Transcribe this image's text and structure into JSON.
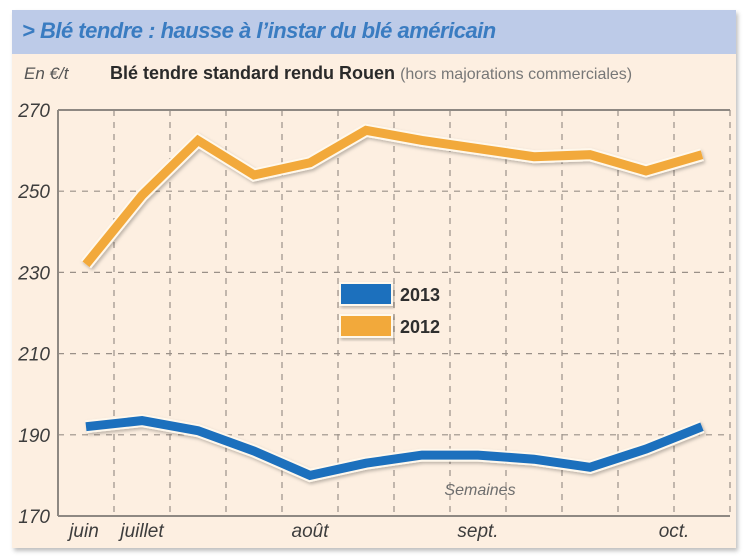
{
  "header": {
    "title": "> Blé tendre : hausse à l’instar du blé américain"
  },
  "subtitle": {
    "unit": "En €/t",
    "main": "Blé tendre standard rendu Rouen",
    "note": "(hors majorations commerciales)"
  },
  "colors": {
    "header_bg": "#bdcbe8",
    "header_text": "#3a7cc1",
    "panel_bg": "#fdefe1",
    "series_2013": "#1f6fbd",
    "series_2012": "#f2a93b"
  },
  "chart_data": {
    "type": "line",
    "title": "Blé tendre standard rendu Rouen (hors majorations commerciales)",
    "ylabel": "En €/t",
    "xlabel": "Semaines",
    "ylim": [
      170,
      270
    ],
    "yticks": [
      170,
      190,
      210,
      230,
      250,
      270
    ],
    "x_month_labels": [
      "juin",
      "juillet",
      "août",
      "sept.",
      "oct."
    ],
    "x_month_positions": [
      1,
      2,
      5,
      8,
      11.5
    ],
    "grid": true,
    "legend_position": "center",
    "x": [
      1,
      2,
      3,
      4,
      5,
      6,
      7,
      8,
      9,
      10,
      11,
      12
    ],
    "series": [
      {
        "name": "2013",
        "color": "#1f6fbd",
        "values": [
          192,
          193.5,
          191,
          186,
          180,
          183,
          185,
          185,
          184,
          182,
          186.5,
          192
        ]
      },
      {
        "name": "2012",
        "color": "#f2a93b",
        "values": [
          232,
          249,
          262.5,
          254,
          257,
          265,
          262.5,
          260.5,
          258.5,
          259,
          255,
          259
        ]
      }
    ],
    "legend": [
      {
        "label": "2013",
        "color": "#1f6fbd"
      },
      {
        "label": "2012",
        "color": "#f2a93b"
      }
    ]
  }
}
